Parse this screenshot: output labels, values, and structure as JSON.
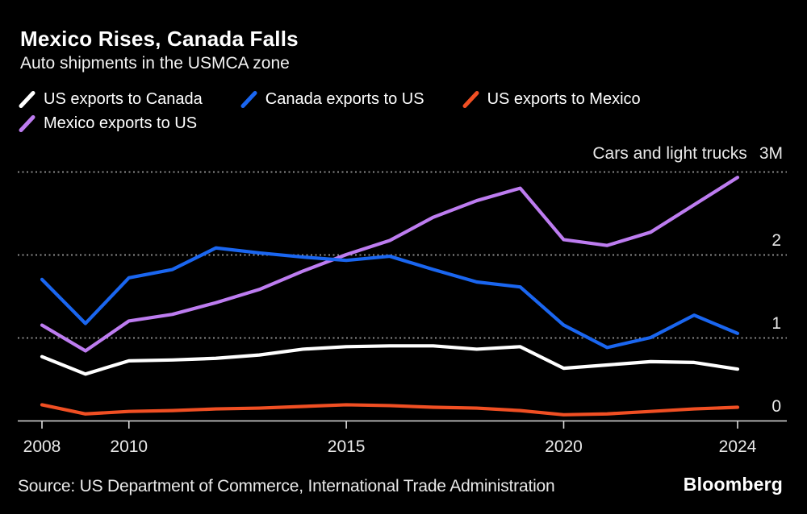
{
  "header": {
    "title": "Mexico Rises, Canada Falls",
    "subtitle": "Auto shipments in the USMCA zone"
  },
  "chart_data": {
    "type": "line",
    "title": "Mexico Rises, Canada Falls",
    "subtitle": "Auto shipments in the USMCA zone",
    "unit_label": "Cars and light trucks",
    "max_tick_label": "3M",
    "x": [
      2008,
      2009,
      2010,
      2011,
      2012,
      2013,
      2014,
      2015,
      2016,
      2017,
      2018,
      2019,
      2020,
      2021,
      2022,
      2023,
      2024
    ],
    "x_ticks": [
      2008,
      2010,
      2015,
      2020,
      2024
    ],
    "y_ticks": [
      0,
      1,
      2
    ],
    "grid_values": [
      1,
      2,
      3
    ],
    "xlim": [
      2008,
      2024
    ],
    "ylim": [
      0,
      3
    ],
    "legend_position": "top",
    "grid": "dotted-horizontal",
    "series": [
      {
        "name": "US exports to Canada",
        "color": "#ffffff",
        "values": [
          0.77,
          0.56,
          0.72,
          0.73,
          0.75,
          0.79,
          0.86,
          0.89,
          0.9,
          0.9,
          0.86,
          0.89,
          0.63,
          0.67,
          0.71,
          0.7,
          0.62
        ]
      },
      {
        "name": "Canada exports to US",
        "color": "#1a66f0",
        "values": [
          1.7,
          1.17,
          1.72,
          1.82,
          2.08,
          2.02,
          1.97,
          1.93,
          1.98,
          1.82,
          1.67,
          1.61,
          1.15,
          0.88,
          1.0,
          1.27,
          1.05
        ]
      },
      {
        "name": "US exports to Mexico",
        "color": "#f04f23",
        "values": [
          0.19,
          0.08,
          0.11,
          0.12,
          0.14,
          0.15,
          0.17,
          0.19,
          0.18,
          0.16,
          0.15,
          0.12,
          0.07,
          0.08,
          0.11,
          0.14,
          0.16
        ]
      },
      {
        "name": "Mexico exports to US",
        "color": "#bd7cf0",
        "values": [
          1.15,
          0.84,
          1.2,
          1.28,
          1.42,
          1.58,
          1.8,
          2.0,
          2.17,
          2.45,
          2.65,
          2.8,
          2.18,
          2.11,
          2.27,
          2.6,
          2.93
        ]
      }
    ]
  },
  "footer": {
    "source": "Source: US Department of Commerce, International Trade Administration",
    "brand": "Bloomberg"
  },
  "colors": {
    "background": "#000000",
    "grid": "#9b9b9b",
    "axis": "#dcdcdc",
    "tick_label": "#e8e8e8"
  }
}
